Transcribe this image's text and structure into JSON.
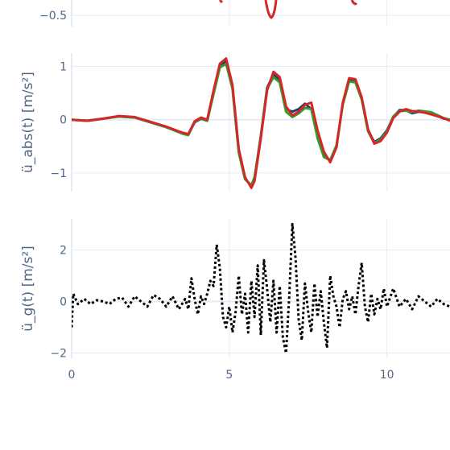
{
  "chart_data": [
    {
      "type": "line",
      "panel": "top-clipped",
      "ylabel": "",
      "y_ticks": [
        -0.5
      ],
      "y_tick_labels": [
        "−0.5"
      ],
      "xlim": [
        0,
        12
      ],
      "grid": true
    },
    {
      "type": "line",
      "panel": "middle",
      "ylabel": "ü_abs(t) [m/s²]",
      "y_ticks": [
        -1,
        0,
        1
      ],
      "y_tick_labels": [
        "−1",
        "0",
        "1"
      ],
      "ylim": [
        -1.35,
        1.25
      ],
      "xlim": [
        0,
        12
      ],
      "grid": true,
      "series": [
        {
          "color": "#1f3b73",
          "x": [
            0,
            0.5,
            1,
            1.5,
            2,
            2.5,
            3,
            3.5,
            3.7,
            3.9,
            4.1,
            4.3,
            4.5,
            4.7,
            4.9,
            5.1,
            5.3,
            5.5,
            5.7,
            5.8,
            6.0,
            6.2,
            6.4,
            6.6,
            6.8,
            7.0,
            7.2,
            7.4,
            7.6,
            7.8,
            8.0,
            8.2,
            8.4,
            8.6,
            8.8,
            9.0,
            9.2,
            9.4,
            9.6,
            9.8,
            10.0,
            10.2,
            10.4,
            10.6,
            10.8,
            11.0,
            11.4,
            11.8,
            12.0
          ],
          "y": [
            0,
            -0.02,
            0.02,
            0.06,
            0.04,
            -0.05,
            -0.14,
            -0.25,
            -0.28,
            -0.05,
            0.02,
            -0.02,
            0.5,
            1.0,
            1.1,
            0.6,
            -0.6,
            -1.1,
            -1.25,
            -1.1,
            -0.3,
            0.6,
            0.85,
            0.75,
            0.2,
            0.15,
            0.2,
            0.3,
            0.2,
            -0.3,
            -0.65,
            -0.78,
            -0.5,
            0.3,
            0.75,
            0.72,
            0.4,
            -0.2,
            -0.42,
            -0.35,
            -0.2,
            0.05,
            0.18,
            0.18,
            0.12,
            0.15,
            0.12,
            0.02,
            0.0
          ]
        },
        {
          "color": "#2ca02c",
          "x": [
            0,
            0.5,
            1,
            1.5,
            2,
            2.5,
            3,
            3.5,
            3.7,
            3.9,
            4.1,
            4.3,
            4.5,
            4.7,
            4.9,
            5.1,
            5.3,
            5.5,
            5.7,
            5.8,
            6.0,
            6.2,
            6.4,
            6.6,
            6.8,
            7.0,
            7.2,
            7.4,
            7.6,
            7.8,
            8.0,
            8.2,
            8.4,
            8.6,
            8.8,
            9.0,
            9.2,
            9.4,
            9.6,
            9.8,
            10.0,
            10.2,
            10.4,
            10.6,
            10.8,
            11.0,
            11.4,
            11.8,
            12.0
          ],
          "y": [
            0,
            -0.02,
            0.02,
            0.06,
            0.04,
            -0.05,
            -0.14,
            -0.26,
            -0.29,
            -0.04,
            0.03,
            -0.02,
            0.48,
            0.98,
            1.05,
            0.58,
            -0.62,
            -1.12,
            -1.23,
            -1.08,
            -0.32,
            0.58,
            0.8,
            0.7,
            0.15,
            0.05,
            0.12,
            0.22,
            0.2,
            -0.35,
            -0.7,
            -0.76,
            -0.48,
            0.28,
            0.72,
            0.7,
            0.38,
            -0.22,
            -0.44,
            -0.37,
            -0.22,
            0.06,
            0.16,
            0.17,
            0.14,
            0.17,
            0.14,
            0.03,
            0.0
          ]
        },
        {
          "color": "#d62728",
          "x": [
            0,
            0.5,
            1,
            1.5,
            2,
            2.5,
            3,
            3.5,
            3.7,
            3.9,
            4.1,
            4.3,
            4.5,
            4.7,
            4.9,
            5.1,
            5.3,
            5.5,
            5.7,
            5.8,
            6.0,
            6.2,
            6.4,
            6.6,
            6.8,
            7.0,
            7.2,
            7.4,
            7.6,
            7.8,
            8.0,
            8.2,
            8.4,
            8.6,
            8.8,
            9.0,
            9.2,
            9.4,
            9.6,
            9.8,
            10.0,
            10.2,
            10.4,
            10.6,
            10.8,
            11.0,
            11.4,
            11.8,
            12.0
          ],
          "y": [
            0,
            -0.02,
            0.02,
            0.07,
            0.05,
            -0.04,
            -0.13,
            -0.24,
            -0.27,
            -0.03,
            0.04,
            0.0,
            0.55,
            1.05,
            1.15,
            0.65,
            -0.55,
            -1.08,
            -1.28,
            -1.15,
            -0.35,
            0.55,
            0.9,
            0.8,
            0.25,
            0.08,
            0.15,
            0.28,
            0.32,
            -0.2,
            -0.6,
            -0.8,
            -0.52,
            0.32,
            0.78,
            0.76,
            0.42,
            -0.18,
            -0.45,
            -0.4,
            -0.24,
            0.03,
            0.15,
            0.2,
            0.16,
            0.16,
            0.1,
            0.03,
            -0.02
          ]
        }
      ]
    },
    {
      "type": "line",
      "panel": "bottom",
      "ylabel": "ü_g(t) [m/s²]",
      "y_ticks": [
        -2,
        0,
        2
      ],
      "y_tick_labels": [
        "−2",
        "0",
        "2"
      ],
      "ylim": [
        -2.2,
        3.2
      ],
      "xlim": [
        0,
        12
      ],
      "x_ticks": [
        0,
        5,
        10
      ],
      "x_tick_labels": [
        "0",
        "5",
        "10"
      ],
      "grid": true,
      "series": [
        {
          "color": "#000000",
          "dash": "dot",
          "x": [
            0,
            0.05,
            0.2,
            0.4,
            0.6,
            0.8,
            1.0,
            1.2,
            1.4,
            1.6,
            1.8,
            2.0,
            2.2,
            2.4,
            2.6,
            2.8,
            3.0,
            3.2,
            3.4,
            3.6,
            3.7,
            3.8,
            3.9,
            4.0,
            4.1,
            4.2,
            4.3,
            4.4,
            4.5,
            4.6,
            4.7,
            4.8,
            4.9,
            5.0,
            5.1,
            5.2,
            5.3,
            5.4,
            5.5,
            5.6,
            5.7,
            5.8,
            5.9,
            6.0,
            6.1,
            6.2,
            6.3,
            6.4,
            6.5,
            6.6,
            6.7,
            6.8,
            6.9,
            7.0,
            7.1,
            7.2,
            7.3,
            7.4,
            7.5,
            7.6,
            7.7,
            7.8,
            7.9,
            8.0,
            8.1,
            8.2,
            8.3,
            8.4,
            8.5,
            8.6,
            8.7,
            8.8,
            8.9,
            9.0,
            9.1,
            9.2,
            9.3,
            9.4,
            9.5,
            9.6,
            9.7,
            9.8,
            9.9,
            10.0,
            10.2,
            10.4,
            10.6,
            10.8,
            11.0,
            11.2,
            11.4,
            11.6,
            11.8,
            12.0
          ],
          "y": [
            -1.0,
            0.3,
            -0.1,
            0.1,
            -0.1,
            0.05,
            0.0,
            -0.1,
            0.1,
            0.15,
            -0.2,
            0.2,
            0.0,
            -0.2,
            0.25,
            0.1,
            -0.2,
            0.2,
            -0.3,
            0.1,
            -0.3,
            0.9,
            0.1,
            -0.5,
            0.2,
            -0.1,
            0.3,
            0.8,
            0.6,
            2.2,
            1.3,
            -0.6,
            -1.0,
            -0.2,
            -1.2,
            -0.4,
            1.0,
            -0.5,
            0.3,
            -1.2,
            0.8,
            -0.6,
            1.4,
            -1.3,
            1.6,
            0.5,
            -0.8,
            0.8,
            -1.2,
            0.6,
            -1.4,
            -2.0,
            0.2,
            3.0,
            1.7,
            -0.7,
            -1.5,
            0.7,
            -0.4,
            -1.2,
            0.7,
            -0.6,
            0.4,
            -0.8,
            -1.8,
            1.0,
            0.2,
            -0.2,
            -1.0,
            0.1,
            0.4,
            -0.3,
            0.2,
            -0.5,
            0.6,
            1.5,
            -0.2,
            -0.8,
            0.3,
            -0.5,
            0.1,
            -0.3,
            0.5,
            -0.2,
            0.5,
            -0.2,
            0.1,
            -0.3,
            0.2,
            0.0,
            -0.2,
            0.1,
            -0.1,
            -0.2
          ]
        }
      ]
    }
  ]
}
